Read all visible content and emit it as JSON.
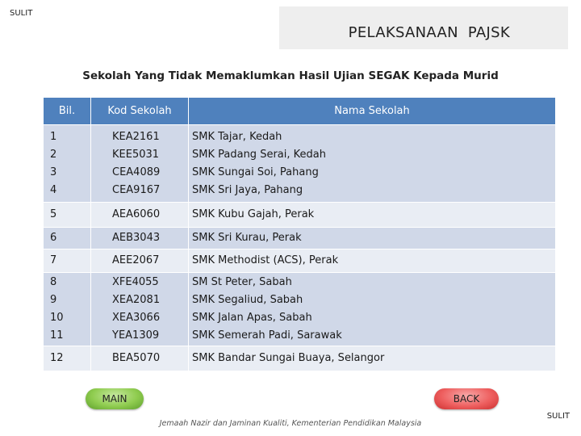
{
  "header": {
    "classification_top": "SULIT",
    "title": "PELAKSANAAN  PAJSK"
  },
  "subtitle": "Sekolah Yang Tidak Memaklumkan Hasil Ujian SEGAK Kepada Murid",
  "table": {
    "columns": [
      "Bil.",
      "Kod Sekolah",
      "Nama Sekolah"
    ],
    "groups": [
      {
        "bil": [
          "1",
          "2",
          "3",
          "4"
        ],
        "kod": [
          "KEA2161",
          "KEE5031",
          "CEA4089",
          "CEA9167"
        ],
        "nama": [
          "SMK Tajar, Kedah",
          "SMK Padang Serai, Kedah",
          "SMK Sungai Soi, Pahang",
          "SMK Sri Jaya, Pahang"
        ]
      },
      {
        "bil": [
          "5"
        ],
        "kod": [
          "AEA6060"
        ],
        "nama": [
          "SMK Kubu Gajah, Perak"
        ]
      },
      {
        "bil": [
          "6"
        ],
        "kod": [
          "AEB3043"
        ],
        "nama": [
          "SMK Sri Kurau, Perak"
        ]
      },
      {
        "bil": [
          "7"
        ],
        "kod": [
          "AEE2067"
        ],
        "nama": [
          "SMK Methodist (ACS), Perak"
        ]
      },
      {
        "bil": [
          "8",
          "9",
          "10",
          "11"
        ],
        "kod": [
          "XFE4055",
          "XEA2081",
          "XEA3066",
          "YEA1309"
        ],
        "nama": [
          "SM St Peter, Sabah",
          "SMK Segaliud, Sabah",
          "SMK Jalan Apas, Sabah",
          "SMK Semerah Padi, Sarawak"
        ]
      },
      {
        "bil": [
          "12"
        ],
        "kod": [
          "BEA5070"
        ],
        "nama": [
          "SMK Bandar Sungai Buaya, Selangor"
        ]
      }
    ]
  },
  "buttons": {
    "main": "MAIN",
    "back": "BACK",
    "main_color": "#8fcc4f",
    "back_color": "#ee5f5f"
  },
  "footer": {
    "note": "Jemaah Nazir dan Jaminan Kualiti, Kementerian Pendidikan Malaysia",
    "classification_bottom": "SULIT"
  },
  "colors": {
    "header_bg": "#4f81bd",
    "row_odd": "#d0d8e8",
    "row_even": "#e9edf4",
    "title_box": "#eeeeee"
  }
}
